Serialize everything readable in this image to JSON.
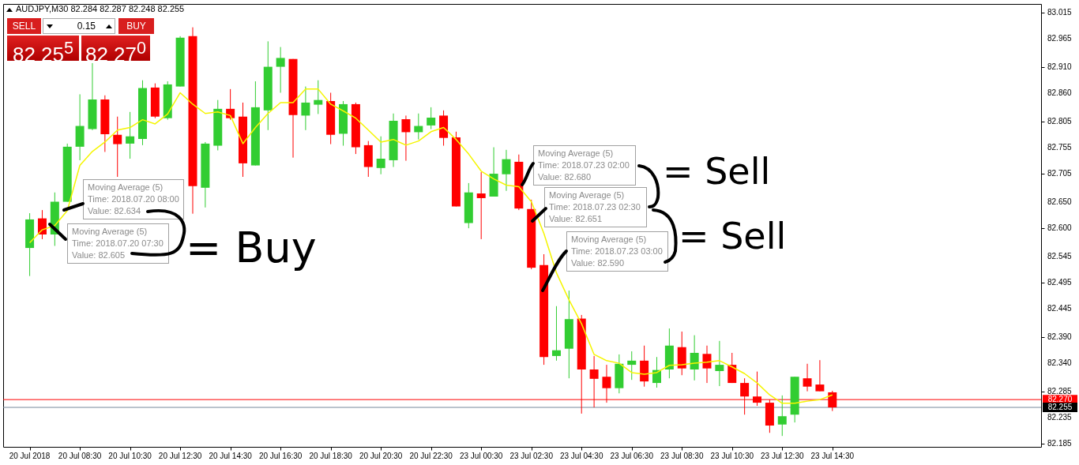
{
  "chart_data": {
    "type": "candlestick",
    "title": "AUDJPY,M30  82.284 82.287 82.248 82.255",
    "categories": [
      "20 Jul 2018",
      null,
      null,
      null,
      "20 Jul 08:30",
      null,
      null,
      null,
      "20 Jul 10:30",
      null,
      null,
      null,
      "20 Jul 12:30",
      null,
      null,
      null,
      "20 Jul 14:30",
      null,
      null,
      null,
      "20 Jul 16:30",
      null,
      null,
      null,
      "20 Jul 18:30",
      null,
      null,
      null,
      "20 Jul 20:30",
      null,
      null,
      null,
      "20 Jul 22:30",
      null,
      null,
      null,
      "23 Jul 00:30",
      null,
      null,
      null,
      "23 Jul 02:30",
      null,
      null,
      null,
      "23 Jul 04:30",
      null,
      null,
      null,
      "23 Jul 06:30",
      null,
      null,
      null,
      "23 Jul 08:30",
      null,
      null,
      null,
      "23 Jul 10:30",
      null,
      null,
      null,
      "23 Jul 12:30",
      null,
      null,
      null,
      "23 Jul 14:30"
    ],
    "ohlc": [
      [
        82.562,
        82.629,
        82.508,
        82.617
      ],
      [
        82.619,
        82.635,
        82.579,
        82.588
      ],
      [
        82.588,
        82.669,
        82.566,
        82.651
      ],
      [
        82.651,
        82.763,
        82.651,
        82.757
      ],
      [
        82.757,
        82.858,
        82.731,
        82.797
      ],
      [
        82.791,
        82.918,
        82.789,
        82.848
      ],
      [
        82.848,
        82.856,
        82.747,
        82.781
      ],
      [
        82.78,
        82.815,
        82.699,
        82.762
      ],
      [
        82.763,
        82.824,
        82.734,
        82.777
      ],
      [
        82.772,
        82.885,
        82.76,
        82.87
      ],
      [
        82.871,
        82.879,
        82.812,
        82.815
      ],
      [
        82.812,
        82.883,
        82.809,
        82.877
      ],
      [
        82.873,
        82.97,
        82.873,
        82.967
      ],
      [
        82.97,
        82.987,
        82.628,
        82.681
      ],
      [
        82.678,
        82.766,
        82.64,
        82.763
      ],
      [
        82.759,
        82.847,
        82.75,
        82.83
      ],
      [
        82.83,
        82.868,
        82.809,
        82.812
      ],
      [
        82.815,
        82.842,
        82.699,
        82.725
      ],
      [
        82.721,
        82.883,
        82.721,
        82.833
      ],
      [
        82.827,
        82.96,
        82.789,
        82.911
      ],
      [
        82.911,
        82.949,
        82.861,
        82.928
      ],
      [
        82.926,
        82.926,
        82.736,
        82.818
      ],
      [
        82.817,
        82.873,
        82.789,
        82.842
      ],
      [
        82.838,
        82.885,
        82.82,
        82.847
      ],
      [
        82.845,
        82.861,
        82.762,
        82.78
      ],
      [
        82.782,
        82.845,
        82.759,
        82.839
      ],
      [
        82.839,
        82.842,
        82.743,
        82.756
      ],
      [
        82.76,
        82.768,
        82.699,
        82.718
      ],
      [
        82.716,
        82.777,
        82.704,
        82.734
      ],
      [
        82.731,
        82.821,
        82.718,
        82.807
      ],
      [
        82.81,
        82.817,
        82.73,
        82.785
      ],
      [
        82.785,
        82.821,
        82.771,
        82.797
      ],
      [
        82.798,
        82.833,
        82.791,
        82.813
      ],
      [
        82.817,
        82.827,
        82.759,
        82.774
      ],
      [
        82.775,
        82.786,
        82.642,
        82.642
      ],
      [
        82.61,
        82.687,
        82.6,
        82.669
      ],
      [
        82.667,
        82.708,
        82.579,
        82.658
      ],
      [
        82.661,
        82.756,
        82.661,
        82.705
      ],
      [
        82.704,
        82.751,
        82.672,
        82.733
      ],
      [
        82.728,
        82.742,
        82.635,
        82.638
      ],
      [
        82.637,
        82.655,
        82.521,
        82.524
      ],
      [
        82.529,
        82.55,
        82.337,
        82.352
      ],
      [
        82.354,
        82.45,
        82.345,
        82.365
      ],
      [
        82.368,
        82.48,
        82.311,
        82.425
      ],
      [
        82.426,
        82.433,
        82.243,
        82.328
      ],
      [
        82.328,
        82.354,
        82.255,
        82.31
      ],
      [
        82.314,
        82.337,
        82.264,
        82.292
      ],
      [
        82.292,
        82.357,
        82.282,
        82.339
      ],
      [
        82.337,
        82.363,
        82.308,
        82.345
      ],
      [
        82.345,
        82.374,
        82.295,
        82.305
      ],
      [
        82.302,
        82.352,
        82.293,
        82.327
      ],
      [
        82.328,
        82.407,
        82.311,
        82.374
      ],
      [
        82.371,
        82.401,
        82.317,
        82.33
      ],
      [
        82.328,
        82.394,
        82.307,
        82.36
      ],
      [
        82.358,
        82.374,
        82.302,
        82.33
      ],
      [
        82.325,
        82.383,
        82.296,
        82.337
      ],
      [
        82.337,
        82.36,
        82.302,
        82.302
      ],
      [
        82.302,
        82.311,
        82.241,
        82.276
      ],
      [
        82.276,
        82.324,
        82.258,
        82.264
      ],
      [
        82.264,
        82.27,
        82.206,
        82.22
      ],
      [
        82.222,
        82.278,
        82.2,
        82.238
      ],
      [
        82.241,
        82.314,
        82.226,
        82.314
      ],
      [
        82.311,
        82.339,
        82.286,
        82.295
      ],
      [
        82.299,
        82.346,
        82.286,
        82.286
      ],
      [
        82.284,
        82.287,
        82.248,
        82.255
      ]
    ],
    "colors": [
      "#32cd32",
      "#ff0000",
      "#32cd32",
      "#32cd32",
      "#32cd32",
      "#32cd32",
      "#ff0000",
      "#ff0000",
      "#32cd32",
      "#32cd32",
      "#ff0000",
      "#32cd32",
      "#32cd32",
      "#ff0000",
      "#32cd32",
      "#32cd32",
      "#ff0000",
      "#ff0000",
      "#32cd32",
      "#32cd32",
      "#32cd32",
      "#ff0000",
      "#32cd32",
      "#32cd32",
      "#ff0000",
      "#32cd32",
      "#ff0000",
      "#ff0000",
      "#32cd32",
      "#32cd32",
      "#ff0000",
      "#32cd32",
      "#32cd32",
      "#ff0000",
      "#ff0000",
      "#32cd32",
      "#ff0000",
      "#32cd32",
      "#32cd32",
      "#ff0000",
      "#ff0000",
      "#ff0000",
      "#32cd32",
      "#32cd32",
      "#ff0000",
      "#ff0000",
      "#ff0000",
      "#32cd32",
      "#32cd32",
      "#ff0000",
      "#32cd32",
      "#32cd32",
      "#ff0000",
      "#32cd32",
      "#ff0000",
      "#32cd32",
      "#ff0000",
      "#ff0000",
      "#ff0000",
      "#ff0000",
      "#32cd32",
      "#32cd32",
      "#ff0000",
      "#ff0000",
      "#ff0000"
    ],
    "series": [
      {
        "type": "line",
        "color": "#f5f500",
        "values": [
          82.572,
          82.597,
          82.605,
          82.634,
          82.721,
          82.748,
          82.766,
          82.789,
          82.794,
          82.809,
          82.801,
          82.82,
          82.861,
          82.839,
          82.821,
          82.824,
          82.817,
          82.763,
          82.794,
          82.821,
          82.842,
          82.842,
          82.868,
          82.868,
          82.839,
          82.826,
          82.812,
          82.789,
          82.766,
          82.771,
          82.76,
          82.768,
          82.786,
          82.794,
          82.771,
          82.743,
          82.71,
          82.695,
          82.683,
          82.68,
          82.651,
          82.59,
          82.514,
          82.462,
          82.416,
          82.357,
          82.345,
          82.34,
          82.322,
          82.319,
          82.322,
          82.336,
          82.337,
          82.34,
          82.342,
          82.345,
          82.333,
          82.32,
          82.302,
          82.279,
          82.263,
          82.263,
          82.267,
          82.27,
          82.279
        ]
      }
    ],
    "ylim": [
      82.179,
      83.032
    ],
    "yticks": [
      83.015,
      82.965,
      {
        "value": 82.91,
        "label": "82.910"
      },
      {
        "value": 82.86,
        "label": "82.860"
      },
      82.805,
      82.755,
      82.705,
      {
        "value": 82.65,
        "label": "82.650"
      },
      {
        "value": 82.6,
        "label": "82.600"
      },
      82.545,
      82.495,
      82.445,
      {
        "value": 82.39,
        "label": "82.390"
      },
      {
        "value": 82.34,
        "label": "82.340"
      },
      82.285,
      82.235,
      82.185
    ],
    "ref_lines": [
      {
        "axis": "y",
        "value": 82.27,
        "label": "82.270",
        "color": "#ff0000"
      },
      {
        "axis": "y",
        "value": 82.255,
        "label": "82.255",
        "color": "#778899"
      }
    ],
    "annotations": [
      "Moving Average (5)\nTime: 2018.07.20 08:00\nValue: 82.634",
      "Moving Average (5)\nTime: 2018.07.20 07:30\nValue: 82.605",
      "= Buy",
      "Moving Average (5)\nTime: 2018.07.23 02:00\nValue: 82.680",
      "Moving Average (5)\nTime: 2018.07.23 02:30\nValue: 82.651",
      "Moving Average (5)\nTime: 2018.07.23 03:00\nValue: 82.590",
      "= Sell",
      "= Sell",
      "SELL",
      "0.15",
      "BUY",
      "82 25$^{5}$",
      "82 27$^{0}$"
    ]
  }
}
